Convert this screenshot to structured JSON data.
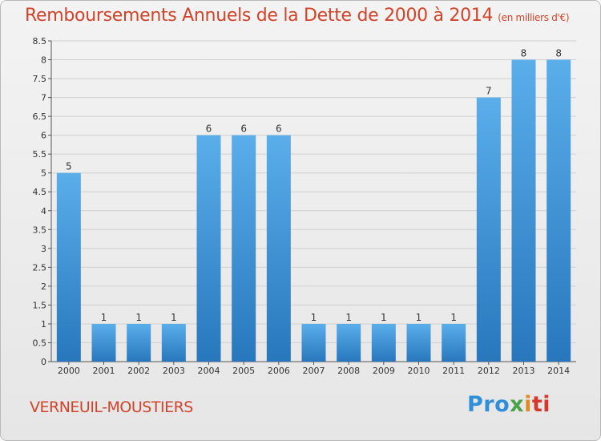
{
  "title": "Remboursements Annuels de la Dette de 2000 à 2014",
  "unit": "(en milliers d'€)",
  "commune": "VERNEUIL-MOUSTIERS",
  "logo": [
    "Pro",
    "x",
    "i",
    "ti"
  ],
  "colors": {
    "title": "#d0442a",
    "bar_top": "#5aaeea",
    "bar_bottom": "#2877bd"
  },
  "chart_data": {
    "type": "bar",
    "title": "Remboursements Annuels de la Dette de 2000 à 2014",
    "ylabel": "en milliers d'€",
    "xlabel": "",
    "categories": [
      "2000",
      "2001",
      "2002",
      "2003",
      "2004",
      "2005",
      "2006",
      "2007",
      "2008",
      "2009",
      "2010",
      "2011",
      "2012",
      "2013",
      "2014"
    ],
    "values": [
      5,
      1,
      1,
      1,
      6,
      6,
      6,
      1,
      1,
      1,
      1,
      1,
      7,
      8,
      8
    ],
    "value_labels": [
      "5",
      "1",
      "1",
      "1",
      "6",
      "6",
      "6",
      "1",
      "1",
      "1",
      "1",
      "1",
      "7",
      "8",
      "8"
    ],
    "ylim": [
      0,
      8.5
    ],
    "yticks": [
      "0",
      "0.5",
      "1",
      "1.5",
      "2",
      "2.5",
      "3",
      "3.5",
      "4",
      "4.5",
      "5",
      "5.5",
      "6",
      "6.5",
      "7",
      "7.5",
      "8",
      "8.5"
    ],
    "grid": true
  }
}
